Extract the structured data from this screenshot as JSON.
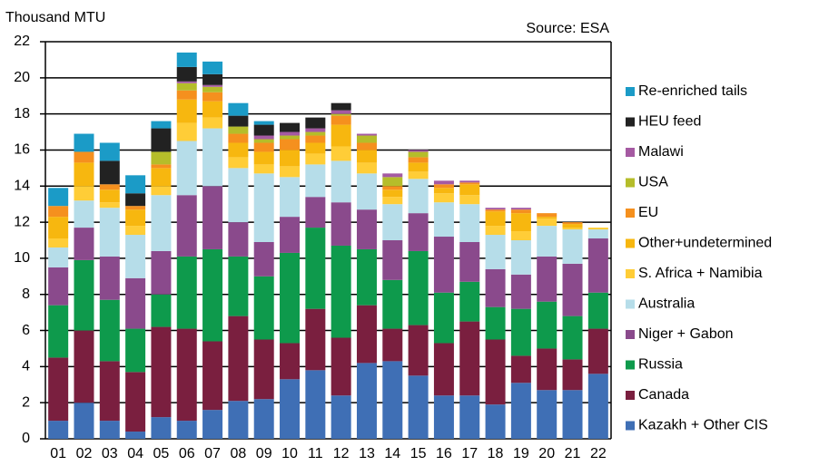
{
  "chart_data": {
    "type": "stacked_bar",
    "y_axis_label": "Thousand MTU",
    "source": "Source: ESA",
    "categories": [
      "01",
      "02",
      "03",
      "04",
      "05",
      "06",
      "07",
      "08",
      "09",
      "10",
      "11",
      "12",
      "13",
      "14",
      "15",
      "16",
      "17",
      "18",
      "19",
      "20",
      "21",
      "22"
    ],
    "ylim": [
      0,
      22
    ],
    "yticks": [
      0,
      2,
      4,
      6,
      8,
      10,
      12,
      14,
      16,
      18,
      20,
      22
    ],
    "grid": true,
    "series": [
      {
        "name": "Kazakh + Other CIS",
        "color": "#3f6fb5",
        "values": [
          1.0,
          2.0,
          1.0,
          0.4,
          1.2,
          1.0,
          1.6,
          2.1,
          2.2,
          3.3,
          3.8,
          2.4,
          4.2,
          4.3,
          3.5,
          2.4,
          2.4,
          1.9,
          3.1,
          2.7,
          2.7,
          3.6
        ]
      },
      {
        "name": "Canada",
        "color": "#7a1f3f",
        "values": [
          3.5,
          4.0,
          3.3,
          3.3,
          5.0,
          5.1,
          3.8,
          4.7,
          3.3,
          2.0,
          3.4,
          3.2,
          3.2,
          1.8,
          2.8,
          2.9,
          4.1,
          3.6,
          1.5,
          2.3,
          1.7,
          2.5
        ]
      },
      {
        "name": "Russia",
        "color": "#0e9a4c",
        "values": [
          2.9,
          3.9,
          3.4,
          2.4,
          1.8,
          4.0,
          5.1,
          3.3,
          3.5,
          5.0,
          4.5,
          5.1,
          3.1,
          2.7,
          4.1,
          2.8,
          2.2,
          1.8,
          2.6,
          2.6,
          2.4,
          2.0
        ]
      },
      {
        "name": "Niger + Gabon",
        "color": "#8a4a8c",
        "values": [
          2.1,
          1.8,
          2.4,
          2.8,
          2.4,
          3.4,
          3.5,
          1.9,
          1.9,
          2.0,
          1.7,
          2.4,
          2.2,
          2.2,
          2.1,
          3.1,
          2.2,
          2.1,
          1.9,
          2.5,
          2.9,
          3.0
        ]
      },
      {
        "name": "Australia",
        "color": "#b6dde9",
        "values": [
          1.1,
          1.5,
          2.7,
          2.4,
          3.1,
          3.0,
          3.2,
          3.0,
          3.8,
          2.2,
          1.8,
          2.3,
          2.0,
          2.0,
          1.9,
          1.9,
          2.1,
          1.9,
          1.9,
          1.7,
          1.9,
          0.5
        ]
      },
      {
        "name": "S. Africa + Namibia",
        "color": "#ffcd37",
        "values": [
          0.5,
          0.8,
          0.3,
          0.5,
          0.5,
          1.0,
          0.6,
          0.6,
          0.5,
          0.6,
          0.6,
          0.8,
          0.6,
          0.4,
          0.4,
          0.5,
          0.5,
          0.5,
          0.5,
          0.4,
          0.1,
          0.1
        ]
      },
      {
        "name": "Other+undetermined",
        "color": "#f7b70f",
        "values": [
          1.2,
          1.3,
          0.7,
          0.9,
          1.0,
          1.3,
          0.9,
          0.8,
          0.7,
          0.9,
          0.6,
          1.2,
          0.7,
          0.4,
          0.5,
          0.3,
          0.6,
          0.8,
          1.0,
          0.1,
          0.2,
          0
        ]
      },
      {
        "name": "EU",
        "color": "#f5901e",
        "values": [
          0.6,
          0.6,
          0.3,
          0.2,
          0.2,
          0.5,
          0.5,
          0.5,
          0.5,
          0.6,
          0.4,
          0.5,
          0.4,
          0.2,
          0.3,
          0.2,
          0.1,
          0.1,
          0.2,
          0.2,
          0.1,
          0
        ]
      },
      {
        "name": "USA",
        "color": "#b5bd2a",
        "values": [
          0,
          0,
          0,
          0,
          0.7,
          0.4,
          0.3,
          0.4,
          0.2,
          0.2,
          0.2,
          0.1,
          0.4,
          0.5,
          0.3,
          0,
          0,
          0,
          0,
          0,
          0,
          0
        ]
      },
      {
        "name": "Malawi",
        "color": "#a55aa2",
        "values": [
          0,
          0,
          0,
          0,
          0,
          0.1,
          0.1,
          0,
          0.2,
          0.2,
          0.2,
          0.2,
          0.1,
          0.2,
          0.1,
          0.2,
          0.1,
          0.1,
          0.1,
          0,
          0,
          0
        ]
      },
      {
        "name": "HEU feed",
        "color": "#222222",
        "values": [
          0,
          0,
          1.3,
          0.7,
          1.3,
          0.8,
          0.6,
          0.6,
          0.6,
          0.5,
          0.6,
          0.4,
          0,
          0,
          0,
          0,
          0,
          0,
          0,
          0,
          0,
          0
        ]
      },
      {
        "name": "Re-enriched tails",
        "color": "#1b9bc7",
        "values": [
          1.0,
          1.0,
          1.0,
          1.0,
          0.4,
          0.8,
          0.7,
          0.7,
          0.2,
          0,
          0,
          0,
          0,
          0,
          0,
          0,
          0,
          0,
          0,
          0,
          0,
          0
        ]
      }
    ]
  }
}
